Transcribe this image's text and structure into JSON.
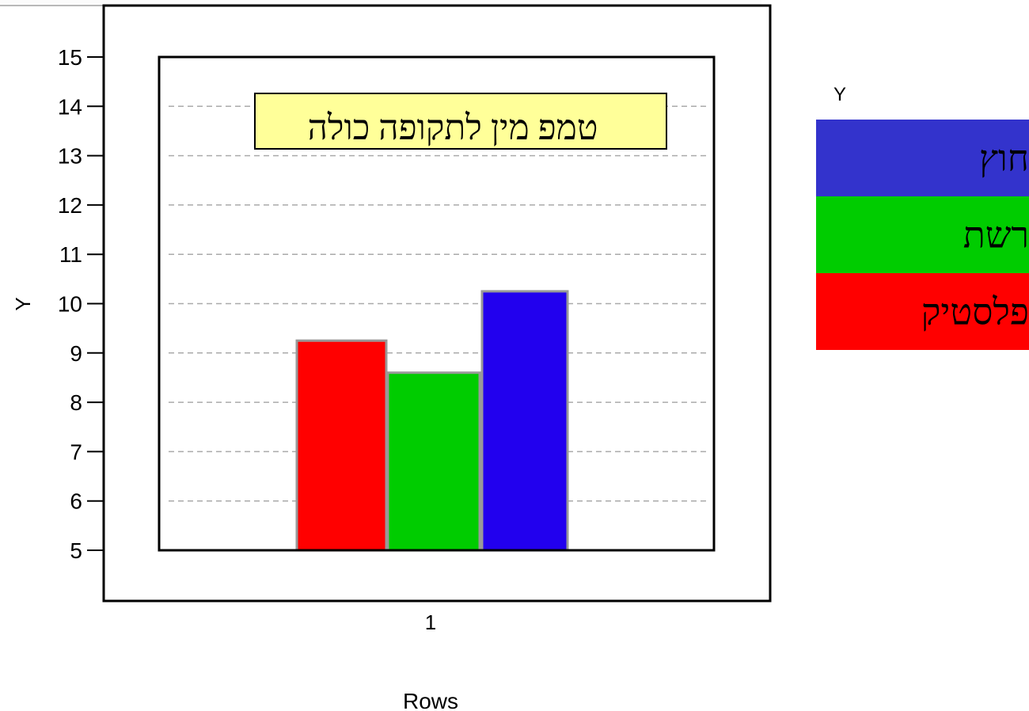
{
  "chart_data": {
    "type": "bar",
    "title": "טמפ מין לתקופה כולה",
    "xlabel": "Rows",
    "ylabel": "Y",
    "categories": [
      "1"
    ],
    "ylim": [
      5,
      15.5
    ],
    "yticks": [
      5,
      6,
      7,
      8,
      9,
      10,
      11,
      12,
      13,
      14,
      15
    ],
    "grid": true,
    "legend_position": "right",
    "legend_title": "Y",
    "series": [
      {
        "name": "פלסטיק",
        "values": [
          9.25
        ],
        "color": "#ff0000"
      },
      {
        "name": "רשת",
        "values": [
          8.6
        ],
        "color": "#00cc00"
      },
      {
        "name": "חוץ",
        "values": [
          10.25
        ],
        "color": "#2200ee"
      }
    ],
    "legend_colors": {
      "חוץ": "#3333cc",
      "רשת": "#00cc00",
      "פלסטיק": "#ff0000"
    }
  }
}
